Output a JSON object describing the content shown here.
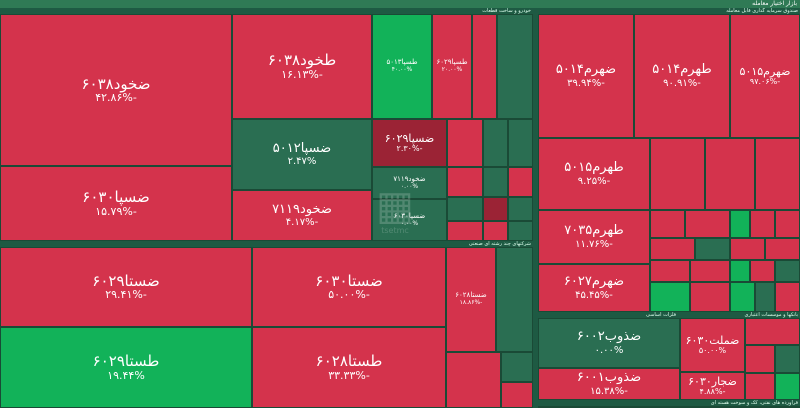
{
  "title": "بازار اختیار معامله",
  "sectors": [
    {
      "id": "s1",
      "label": "خودرو و ساخت قطعات"
    },
    {
      "id": "s2",
      "label": "صندوق سرمایه گذاری قابل معامله"
    },
    {
      "id": "s3",
      "label": "شرکتهای چند رشته ای صنعتی"
    },
    {
      "id": "s4",
      "label": "فلزات اساسی"
    },
    {
      "id": "s5",
      "label": "بانکها و موسسات اعتباری"
    },
    {
      "id": "s6",
      "label": "فراورده های نفتی، کک و سوخت هسته ای"
    }
  ],
  "tiles": [
    {
      "sym": "ضخود۶۰۳۸",
      "pct": "-۴۲.۸۶%"
    },
    {
      "sym": "طخود۶۰۳۸",
      "pct": "-۱۶.۱۳%"
    },
    {
      "sym": "طسپا۵۰۱۳",
      "pct": "۴۰.۰۰%"
    },
    {
      "sym": "طسپا۶۰۲۹",
      "pct": "۲۰.۰۰%"
    },
    {
      "sym": "ضسپا۶۰۳۰",
      "pct": "-۱۵.۷۹%"
    },
    {
      "sym": "ضسپا۵۰۱۲",
      "pct": "۲.۴۷%"
    },
    {
      "sym": "ضسپا۶۰۲۹",
      "pct": "-۲.۳۰%"
    },
    {
      "sym": "ضخود۷۱۱۹",
      "pct": "-۴.۱۷%"
    },
    {
      "sym": "ضخود۷۱۱۹",
      "pct": "۰.۰۰%"
    },
    {
      "sym": "ضسپا۶۰۳۰",
      "pct": "۰.۰۰%"
    },
    {
      "sym": "ضهرم۵۰۱۴",
      "pct": "-۳۹.۹۴%"
    },
    {
      "sym": "طهرم۵۰۱۴",
      "pct": "-۹۰.۹۱%"
    },
    {
      "sym": "ضهرم۵۰۱۵",
      "pct": "-۹۷.۰۶%"
    },
    {
      "sym": "طهرم۵۰۱۵",
      "pct": "-۹.۲۵%"
    },
    {
      "sym": "طهرم۷۰۳۵",
      "pct": "-۱۱.۷۶%"
    },
    {
      "sym": "ضهرم۶۰۲۷",
      "pct": "-۴۵.۴۵%"
    },
    {
      "sym": "ضستا۶۰۲۹",
      "pct": "-۲۹.۴۱%"
    },
    {
      "sym": "ضستا۶۰۳۰",
      "pct": "-۵۰.۰۰%"
    },
    {
      "sym": "طستا۶۰۲۹",
      "pct": "۱۹.۴۴%"
    },
    {
      "sym": "طستا۶۰۲۸",
      "pct": "-۳۳.۳۳%"
    },
    {
      "sym": "ضستا۶۰۲۸",
      "pct": "-۱۸.۸۶%"
    },
    {
      "sym": "ضذوب۶۰۰۲",
      "pct": "۰.۰۰%"
    },
    {
      "sym": "ضذوب۶۰۰۱",
      "pct": "-۱۵.۳۸%"
    },
    {
      "sym": "ضملت۶۰۳۰",
      "pct": "۵۰.۰۰%"
    },
    {
      "sym": "ضجار۶۰۳۰",
      "pct": "-۴.۸۸%"
    }
  ],
  "watermark": "tsetmc"
}
